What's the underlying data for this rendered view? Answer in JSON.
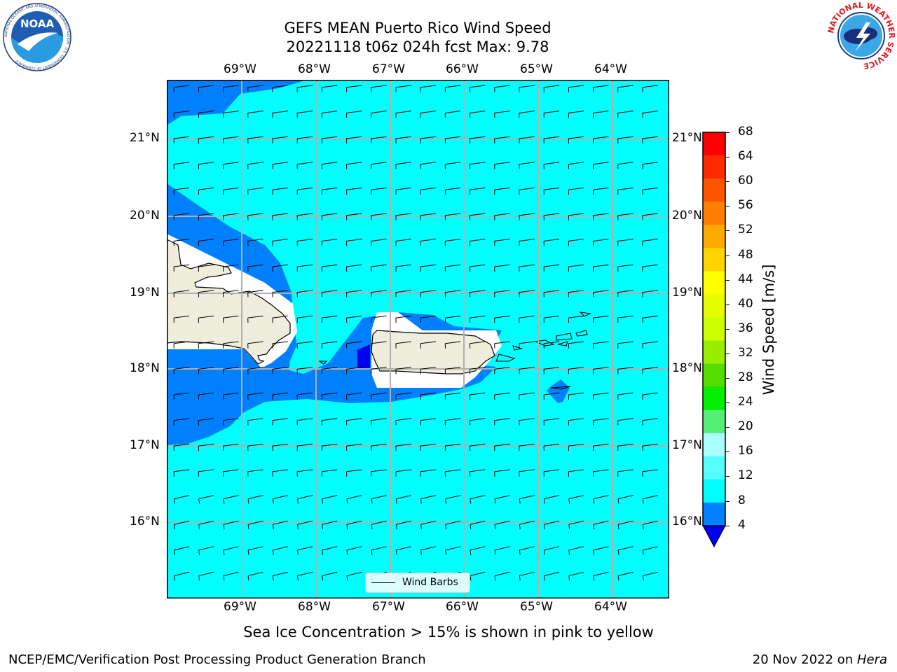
{
  "header": {
    "title_line1": "GEFS MEAN Puerto Rico Wind Speed",
    "title_line2": "20221118 t06z 024h fcst   Max: 9.78"
  },
  "logos": {
    "left": {
      "text": "NOAA",
      "ring_text": "NATIONAL OCEANIC AND ATMOSPHERIC ADMINISTRATION · U.S. DEPARTMENT OF COMMERCE"
    },
    "right": {
      "ring_text": "NATIONAL WEATHER SERVICE"
    }
  },
  "map": {
    "lon_labels": [
      "69°W",
      "68°W",
      "67°W",
      "66°W",
      "65°W",
      "64°W"
    ],
    "lat_labels": [
      "21°N",
      "20°N",
      "19°N",
      "18°N",
      "17°N",
      "16°N"
    ],
    "legend_label": "Wind Barbs",
    "colors": {
      "ocean_light": "#00ffff",
      "ocean_mid": "#0080ff",
      "ocean_dark": "#0000ee",
      "land": "#efeedc"
    }
  },
  "colorbar": {
    "title": "Wind Speed [m/s]",
    "ticks": [
      "68",
      "64",
      "60",
      "56",
      "52",
      "48",
      "44",
      "40",
      "36",
      "32",
      "28",
      "24",
      "20",
      "16",
      "12",
      "8",
      "4"
    ],
    "colors": [
      "#ff0000",
      "#ff2a00",
      "#ff5500",
      "#ff8000",
      "#ffaa00",
      "#ffd400",
      "#ffff00",
      "#e6ff00",
      "#ccff00",
      "#99ee00",
      "#55dd00",
      "#00ee00",
      "#55ee77",
      "#aaffff",
      "#55ffff",
      "#00ffff",
      "#0080ff"
    ],
    "extend_color": "#0000ee"
  },
  "note": "Sea Ice Concentration > 15% is shown in pink to yellow",
  "footer": {
    "left": "NCEP/EMC/Verification Post Processing Product Generation Branch",
    "date": "20 Nov 2022 on ",
    "machine": "Hera"
  }
}
